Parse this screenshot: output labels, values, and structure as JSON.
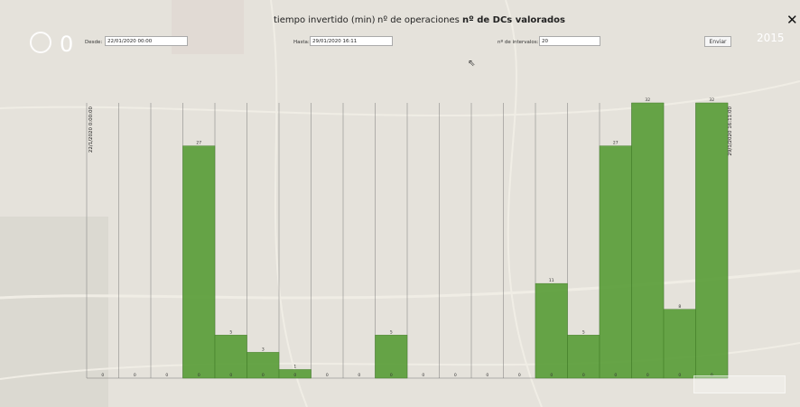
{
  "tabs": [
    {
      "label": "tiempo invertido (min)"
    },
    {
      "label": "nº de operaciones"
    },
    {
      "label": "nº de DCs valorados"
    }
  ],
  "close_label": "✕",
  "year": "2015",
  "big_count": "0",
  "form": {
    "desde_label": "Desde:",
    "desde_value": "22/01/2020 00:00",
    "hasta_label": "Hasta:",
    "hasta_value": "29/01/2020 16:11",
    "intervalos_label": "nº de intervalos:",
    "intervalos_value": "20",
    "submit_label": "Enviar"
  },
  "colors": {
    "bar": "#5b9e3a",
    "bar_stroke": "#3f7a24"
  },
  "chart_data": {
    "type": "bar",
    "title": "",
    "start_label": "22/1/2020 0:00:00",
    "end_label": "29/1/2020 16:11:00",
    "ylim": [
      0,
      32
    ],
    "series": [
      {
        "values": [
          0,
          0,
          0,
          27,
          5,
          3,
          1,
          0,
          0,
          5,
          0,
          0,
          0,
          0,
          11,
          5,
          27,
          32,
          8,
          32
        ]
      },
      {
        "values": [
          0,
          0,
          0,
          0,
          0,
          0,
          0,
          0,
          0,
          0,
          0,
          0,
          0,
          0,
          0,
          0,
          0,
          0,
          0,
          0
        ]
      }
    ]
  }
}
